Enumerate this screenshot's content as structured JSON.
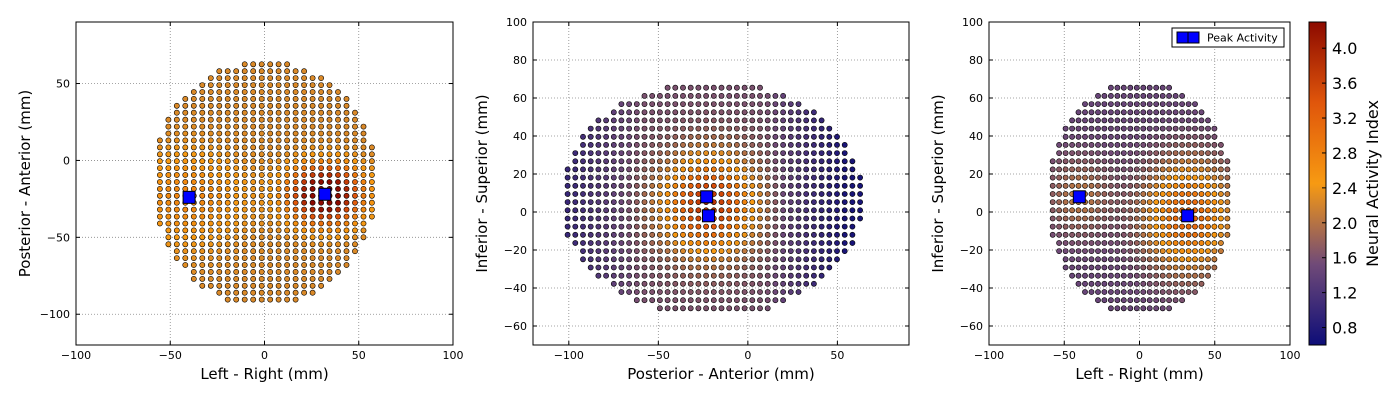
{
  "chart_data": [
    {
      "type": "scatter",
      "xlabel": "Left - Right (mm)",
      "ylabel": "Posterior - Anterior (mm)",
      "xlim": [
        -100,
        100
      ],
      "ylim": [
        -120,
        90
      ],
      "xticks": [
        -100,
        -50,
        0,
        50,
        100
      ],
      "yticks": [
        -100,
        -50,
        0,
        50
      ],
      "xtick_labels": [
        "−100",
        "−50",
        "0",
        "50",
        "100"
      ],
      "ytick_labels": [
        "−100",
        "−50",
        "0",
        "50"
      ],
      "grid": true,
      "grid_spacing_mm": 4.5,
      "region": {
        "shape": "ellipse",
        "center": [
          0,
          -15
        ],
        "radius_x": 60,
        "radius_y": 80
      },
      "activity_sources": [
        {
          "x": 32,
          "y": -22,
          "amplitude": 2.8,
          "sigma": 12
        },
        {
          "x": -40,
          "y": -24,
          "amplitude": 0.5,
          "sigma": 20
        }
      ],
      "baseline_activity": 2.25,
      "peaks": [
        {
          "series": "Peak Activity",
          "x": -40,
          "y": -24
        },
        {
          "series": "Peak Activity",
          "x": 32,
          "y": -22
        }
      ]
    },
    {
      "type": "scatter",
      "xlabel": "Posterior - Anterior (mm)",
      "ylabel": "Inferior - Superior (mm)",
      "xlim": [
        -120,
        90
      ],
      "ylim": [
        -70,
        100
      ],
      "xticks": [
        -100,
        -50,
        0,
        50
      ],
      "yticks": [
        -60,
        -40,
        -20,
        0,
        20,
        40,
        60,
        80,
        100
      ],
      "xtick_labels": [
        "−100",
        "−50",
        "0",
        "50"
      ],
      "ytick_labels": [
        "−60",
        "−40",
        "−20",
        "0",
        "20",
        "40",
        "60",
        "80",
        "100"
      ],
      "grid": true,
      "grid_spacing_mm": 4.3,
      "region": {
        "shape": "ellipse",
        "center": [
          -20,
          7
        ],
        "radius_x": 85,
        "radius_y": 62
      },
      "activity_sources": [
        {
          "x": -22,
          "y": 4,
          "amplitude": 2.2,
          "sigma": 18
        }
      ],
      "baseline_activity": 1.6,
      "posterior_boost": {
        "x_from": -60,
        "amount": 0.6
      },
      "anterior_decay": {
        "x_from": 10,
        "to": 0.7
      },
      "peaks": [
        {
          "series": "Peak Activity",
          "x": -23,
          "y": 8
        },
        {
          "series": "Peak Activity",
          "x": -22,
          "y": -2
        }
      ]
    },
    {
      "type": "scatter",
      "xlabel": "Left - Right (mm)",
      "ylabel": "Inferior - Superior (mm)",
      "xlim": [
        -100,
        100
      ],
      "ylim": [
        -70,
        100
      ],
      "xticks": [
        -100,
        -50,
        0,
        50,
        100
      ],
      "yticks": [
        -60,
        -40,
        -20,
        0,
        20,
        40,
        60,
        80,
        100
      ],
      "xtick_labels": [
        "−100",
        "−50",
        "0",
        "50",
        "100"
      ],
      "ytick_labels": [
        "−60",
        "−40",
        "−20",
        "0",
        "20",
        "40",
        "60",
        "80",
        "100"
      ],
      "grid": true,
      "grid_spacing_mm": 4.3,
      "region": {
        "shape": "ellipse",
        "center": [
          0,
          7
        ],
        "radius_x": 62,
        "radius_y": 62
      },
      "activity_sources": [
        {
          "x": 32,
          "y": -2,
          "amplitude": 1.8,
          "sigma": 20
        },
        {
          "x": -40,
          "y": 8,
          "amplitude": 0.6,
          "sigma": 15
        }
      ],
      "baseline_activity": 1.45,
      "peaks": [
        {
          "series": "Peak Activity",
          "x": -40,
          "y": 8
        },
        {
          "series": "Peak Activity",
          "x": 32,
          "y": -2
        }
      ],
      "legend": {
        "placement": "top-right",
        "entries": [
          "Peak Activity"
        ]
      }
    }
  ],
  "colorbar": {
    "label": "Neural Activity Index",
    "range": [
      0.6,
      4.3
    ],
    "ticks": [
      0.8,
      1.2,
      1.6,
      2.0,
      2.4,
      2.8,
      3.2,
      3.6,
      4.0
    ],
    "tick_labels": [
      "0.8",
      "1.2",
      "1.6",
      "2.0",
      "2.4",
      "2.8",
      "3.2",
      "3.6",
      "4.0"
    ],
    "colors": [
      "#0d0d78",
      "#704a78",
      "#f79a12",
      "#e0560b",
      "#8c0a00"
    ]
  },
  "style": {
    "peak_marker_color": "#0000ff",
    "dot_edge_color": "#000000",
    "grid_color": "#888888"
  }
}
